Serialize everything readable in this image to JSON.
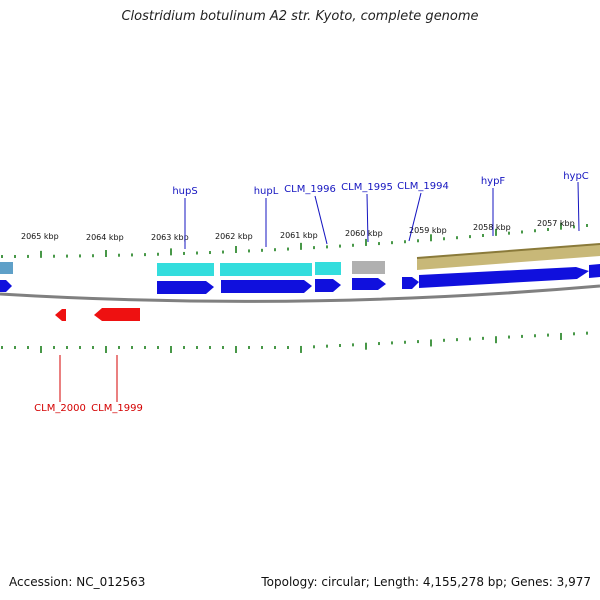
{
  "title": "Clostridium botulinum A2 str. Kyoto, complete genome",
  "footer": {
    "accession": "Accession: NC_012563",
    "summary": "Topology: circular; Length: 4,155,278 bp; Genes: 3,977"
  },
  "colors": {
    "forward_cds": "#1010dd",
    "reverse_cds": "#ee1111",
    "forward_label": "#1515c0",
    "reverse_label": "#d40000",
    "ticks": "#1a7f1a",
    "backbone": "#808080",
    "track_cyan": "#33dddd",
    "track_gray": "#b0b0b0",
    "track_khaki": "#c8b878",
    "track_steel": "#5fa0c8"
  },
  "scale_labels": [
    "2065 kbp",
    "2064 kbp",
    "2063 kbp",
    "2062 kbp",
    "2061 kbp",
    "2060 kbp",
    "2059 kbp",
    "2058 kbp",
    "2057 kbp"
  ],
  "forward_genes": [
    "hupS",
    "hupL",
    "CLM_1996",
    "CLM_1995",
    "CLM_1994",
    "hypF",
    "hypC"
  ],
  "reverse_genes": [
    "CLM_2000",
    "CLM_1999"
  ]
}
